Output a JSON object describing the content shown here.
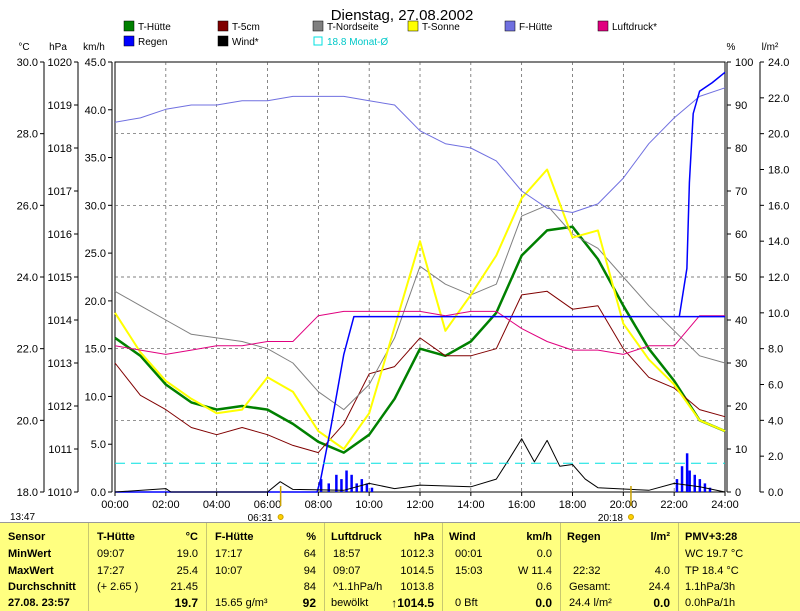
{
  "title": "Dienstag, 27.08.2002",
  "time_label": "13:47",
  "axis_units": {
    "celsius": "°C",
    "hpa": "hPa",
    "kmh": "km/h",
    "percent": "%",
    "lm2": "l/m²"
  },
  "legend": [
    {
      "label": "T-Hütte",
      "color": "#008000"
    },
    {
      "label": "T-5cm",
      "color": "#800000"
    },
    {
      "label": "T-Nordseite",
      "color": "#808080"
    },
    {
      "label": "T-Sonne",
      "color": "#ffff00"
    },
    {
      "label": "F-Hütte",
      "color": "#7070e0"
    },
    {
      "label": "Luftdruck*",
      "color": "#e0007f"
    },
    {
      "label": "Regen",
      "color": "#0000ff"
    },
    {
      "label": "Wind*",
      "color": "#000000"
    },
    {
      "label": "18.8 Monat-Ø",
      "color": "#00e0e0"
    }
  ],
  "sun_markers": {
    "sunrise": "06:31",
    "sunset": "20:18"
  },
  "chart_data": {
    "type": "line",
    "title": "Dienstag, 27.08.2002",
    "x_ticks": [
      "00:00",
      "02:00",
      "04:00",
      "06:00",
      "08:00",
      "10:00",
      "12:00",
      "14:00",
      "16:00",
      "18:00",
      "20:00",
      "22:00",
      "24:00"
    ],
    "axes": {
      "celsius": {
        "ticks": [
          "18.0",
          "20.0",
          "22.0",
          "24.0",
          "26.0",
          "28.0",
          "30.0"
        ],
        "range": [
          18,
          30
        ]
      },
      "hpa": {
        "ticks": [
          "1010",
          "1011",
          "1012",
          "1013",
          "1014",
          "1015",
          "1016",
          "1017",
          "1018",
          "1019",
          "1020"
        ],
        "range": [
          1010,
          1020
        ]
      },
      "kmh": {
        "ticks": [
          "0.0",
          "5.0",
          "10.0",
          "15.0",
          "20.0",
          "25.0",
          "30.0",
          "35.0",
          "40.0",
          "45.0"
        ],
        "range": [
          0,
          50
        ]
      },
      "percent": {
        "ticks": [
          "0",
          "10",
          "20",
          "30",
          "40",
          "50",
          "60",
          "70",
          "80",
          "90",
          "100"
        ],
        "range": [
          0,
          100
        ]
      },
      "lm2": {
        "ticks": [
          "0.0",
          "2.0",
          "4.0",
          "6.0",
          "8.0",
          "10.0",
          "12.0",
          "14.0",
          "16.0",
          "18.0",
          "20.0",
          "22.0",
          "24.0"
        ],
        "range": [
          0,
          25
        ]
      }
    },
    "series": [
      {
        "name": "T-Hütte",
        "axis": "celsius",
        "color": "#008000",
        "width": 2.5,
        "points": [
          [
            0,
            22.3
          ],
          [
            1,
            21.8
          ],
          [
            2,
            21.0
          ],
          [
            3,
            20.5
          ],
          [
            4,
            20.3
          ],
          [
            5,
            20.4
          ],
          [
            6,
            20.3
          ],
          [
            7,
            19.9
          ],
          [
            8,
            19.4
          ],
          [
            9,
            19.1
          ],
          [
            10,
            19.6
          ],
          [
            11,
            20.6
          ],
          [
            12,
            22.0
          ],
          [
            13,
            21.8
          ],
          [
            14,
            22.2
          ],
          [
            15,
            23.0
          ],
          [
            16,
            24.6
          ],
          [
            17,
            25.3
          ],
          [
            18,
            25.4
          ],
          [
            19,
            24.5
          ],
          [
            20,
            23.2
          ],
          [
            21,
            22.0
          ],
          [
            22,
            21.1
          ],
          [
            23,
            20.0
          ],
          [
            24,
            19.7
          ]
        ]
      },
      {
        "name": "T-5cm",
        "axis": "celsius",
        "color": "#800000",
        "width": 1,
        "points": [
          [
            0,
            21.6
          ],
          [
            1,
            20.7
          ],
          [
            2,
            20.3
          ],
          [
            3,
            19.8
          ],
          [
            4,
            19.6
          ],
          [
            5,
            19.8
          ],
          [
            6,
            19.6
          ],
          [
            7,
            19.3
          ],
          [
            8,
            19.1
          ],
          [
            9,
            19.9
          ],
          [
            10,
            21.3
          ],
          [
            11,
            21.5
          ],
          [
            12,
            22.3
          ],
          [
            13,
            21.8
          ],
          [
            14,
            21.8
          ],
          [
            15,
            22.0
          ],
          [
            16,
            23.5
          ],
          [
            17,
            23.6
          ],
          [
            18,
            23.1
          ],
          [
            19,
            23.2
          ],
          [
            20,
            22.0
          ],
          [
            21,
            21.2
          ],
          [
            22,
            20.9
          ],
          [
            23,
            20.3
          ],
          [
            24,
            20.1
          ]
        ]
      },
      {
        "name": "T-Nordseite",
        "axis": "celsius",
        "color": "#808080",
        "width": 1,
        "points": [
          [
            0,
            23.6
          ],
          [
            1,
            23.2
          ],
          [
            2,
            22.8
          ],
          [
            3,
            22.4
          ],
          [
            4,
            22.3
          ],
          [
            5,
            22.2
          ],
          [
            6,
            22.0
          ],
          [
            7,
            21.6
          ],
          [
            8,
            20.8
          ],
          [
            9,
            20.3
          ],
          [
            10,
            21.0
          ],
          [
            11,
            22.3
          ],
          [
            12,
            24.3
          ],
          [
            13,
            23.8
          ],
          [
            14,
            23.5
          ],
          [
            15,
            23.8
          ],
          [
            16,
            25.7
          ],
          [
            17,
            26.0
          ],
          [
            18,
            25.2
          ],
          [
            19,
            24.8
          ],
          [
            20,
            24.0
          ],
          [
            21,
            23.2
          ],
          [
            22,
            22.5
          ],
          [
            23,
            21.8
          ],
          [
            24,
            21.6
          ]
        ]
      },
      {
        "name": "T-Sonne",
        "axis": "celsius",
        "color": "#ffff00",
        "width": 2,
        "points": [
          [
            0,
            23.0
          ],
          [
            1,
            21.9
          ],
          [
            2,
            21.1
          ],
          [
            3,
            20.6
          ],
          [
            4,
            20.2
          ],
          [
            5,
            20.3
          ],
          [
            6,
            21.2
          ],
          [
            7,
            20.8
          ],
          [
            8,
            19.7
          ],
          [
            9,
            19.2
          ],
          [
            10,
            20.2
          ],
          [
            11,
            22.6
          ],
          [
            12,
            25.0
          ],
          [
            13,
            22.5
          ],
          [
            14,
            23.5
          ],
          [
            15,
            24.6
          ],
          [
            16,
            26.2
          ],
          [
            17,
            27.0
          ],
          [
            18,
            25.1
          ],
          [
            19,
            25.3
          ],
          [
            20,
            22.7
          ],
          [
            21,
            21.7
          ],
          [
            22,
            21.0
          ],
          [
            23,
            20.0
          ],
          [
            24,
            19.7
          ]
        ]
      },
      {
        "name": "F-Hütte",
        "axis": "percent",
        "color": "#7070e0",
        "width": 1,
        "points": [
          [
            0,
            86
          ],
          [
            1,
            87
          ],
          [
            2,
            89
          ],
          [
            3,
            90
          ],
          [
            4,
            90
          ],
          [
            5,
            91
          ],
          [
            6,
            91
          ],
          [
            7,
            92
          ],
          [
            8,
            92
          ],
          [
            9,
            92
          ],
          [
            10,
            91
          ],
          [
            11,
            90
          ],
          [
            12,
            84
          ],
          [
            13,
            81
          ],
          [
            14,
            80
          ],
          [
            15,
            77
          ],
          [
            16,
            70
          ],
          [
            17,
            66
          ],
          [
            18,
            65
          ],
          [
            19,
            67
          ],
          [
            20,
            73
          ],
          [
            21,
            81
          ],
          [
            22,
            87
          ],
          [
            23,
            92
          ],
          [
            24,
            94
          ]
        ]
      },
      {
        "name": "Luftdruck*",
        "axis": "hpa",
        "color": "#e0007f",
        "width": 1,
        "points": [
          [
            0,
            1013.4
          ],
          [
            1,
            1013.3
          ],
          [
            2,
            1013.2
          ],
          [
            3,
            1013.3
          ],
          [
            4,
            1013.4
          ],
          [
            5,
            1013.4
          ],
          [
            6,
            1013.5
          ],
          [
            7,
            1013.5
          ],
          [
            8,
            1014.1
          ],
          [
            9,
            1014.2
          ],
          [
            10,
            1014.2
          ],
          [
            11,
            1014.2
          ],
          [
            12,
            1014.2
          ],
          [
            13,
            1014.1
          ],
          [
            14,
            1014.2
          ],
          [
            15,
            1014.2
          ],
          [
            16,
            1013.8
          ],
          [
            17,
            1013.5
          ],
          [
            18,
            1013.3
          ],
          [
            19,
            1013.3
          ],
          [
            20,
            1013.2
          ],
          [
            21,
            1013.4
          ],
          [
            22,
            1013.4
          ],
          [
            23,
            1014.1
          ],
          [
            24,
            1014.1
          ]
        ]
      },
      {
        "name": "Regen",
        "axis": "lm2",
        "color": "#0000ff",
        "width": 1.5,
        "points": [
          [
            0,
            0
          ],
          [
            7.95,
            0
          ],
          [
            8.1,
            0.8
          ],
          [
            8.5,
            3.8
          ],
          [
            9,
            8.0
          ],
          [
            9.4,
            10.2
          ],
          [
            24,
            10.2
          ]
        ],
        "tail": [
          [
            22.2,
            10.2
          ],
          [
            22.5,
            13.0
          ],
          [
            22.6,
            18.0
          ],
          [
            22.75,
            22.0
          ],
          [
            23,
            23.3
          ],
          [
            23.5,
            23.8
          ],
          [
            24,
            24.4
          ]
        ]
      },
      {
        "name": "Wind*",
        "axis": "kmh",
        "color": "#000000",
        "width": 1,
        "points": [
          [
            0,
            0
          ],
          [
            2,
            0.4
          ],
          [
            2.2,
            0
          ],
          [
            6,
            0
          ],
          [
            6.5,
            1.2
          ],
          [
            7,
            0.3
          ],
          [
            9,
            0.2
          ],
          [
            10,
            1.0
          ],
          [
            11,
            0.4
          ],
          [
            12,
            0.8
          ],
          [
            14,
            0.6
          ],
          [
            15,
            1.5
          ],
          [
            15.5,
            3.8
          ],
          [
            16,
            6.2
          ],
          [
            16.5,
            3.5
          ],
          [
            17,
            6.0
          ],
          [
            17.5,
            3.0
          ],
          [
            18,
            3.2
          ],
          [
            18.5,
            1.5
          ],
          [
            19,
            0.5
          ],
          [
            21,
            0.2
          ],
          [
            22,
            1.0
          ],
          [
            23,
            0.6
          ],
          [
            24,
            0
          ]
        ]
      },
      {
        "name": "18.8 Monat-Ø",
        "axis": "celsius",
        "color": "#00e0e0",
        "width": 1,
        "dashed": true,
        "points": [
          [
            0,
            18.8
          ],
          [
            24,
            18.8
          ]
        ]
      }
    ],
    "rain_bars": {
      "axis": "percent",
      "color": "#0000ff",
      "bars": [
        [
          8.1,
          3
        ],
        [
          8.4,
          2
        ],
        [
          8.7,
          4
        ],
        [
          8.9,
          3
        ],
        [
          9.1,
          5
        ],
        [
          9.3,
          4
        ],
        [
          9.5,
          2
        ],
        [
          9.7,
          3
        ],
        [
          9.9,
          2
        ],
        [
          10.1,
          1
        ],
        [
          22.1,
          3
        ],
        [
          22.3,
          6
        ],
        [
          22.5,
          9
        ],
        [
          22.6,
          5
        ],
        [
          22.8,
          4
        ],
        [
          23,
          3
        ],
        [
          23.2,
          2
        ],
        [
          23.4,
          1
        ]
      ]
    },
    "grid": true
  },
  "panel": {
    "sensor": {
      "header": "Sensor",
      "rows": [
        "MinWert",
        "MaxWert",
        "Durchschnitt",
        "27.08. 23:57"
      ]
    },
    "t_huette": {
      "header": "T-Hütte",
      "unit": "°C",
      "rows": [
        [
          "09:07",
          "19.0"
        ],
        [
          "17:27",
          "25.4"
        ],
        [
          "(+ 2.65 )",
          "21.45"
        ],
        [
          "",
          "19.7"
        ]
      ]
    },
    "f_huette": {
      "header": "F-Hütte",
      "unit": "%",
      "rows": [
        [
          "17:17",
          "64"
        ],
        [
          "10:07",
          "94"
        ],
        [
          "",
          "84"
        ],
        [
          "15.65 g/m³",
          "92"
        ]
      ]
    },
    "luftdruck": {
      "header": "Luftdruck",
      "unit": "hPa",
      "rows": [
        [
          "18:57",
          "1012.3"
        ],
        [
          "09:07",
          "1014.5"
        ],
        [
          "^1.1hPa/h",
          "1013.8"
        ],
        [
          "bewölkt",
          "↑1014.5"
        ]
      ]
    },
    "wind": {
      "header": "Wind",
      "unit": "km/h",
      "rows": [
        [
          "00:01",
          "0.0"
        ],
        [
          "15:03",
          "W 11.4"
        ],
        [
          "",
          "0.6"
        ],
        [
          "0 Bft",
          "0.0"
        ]
      ]
    },
    "regen": {
      "header": "Regen",
      "unit": "l/m²",
      "rows": [
        [
          "",
          ""
        ],
        [
          "22:32",
          "4.0"
        ],
        [
          "Gesamt:",
          "24.4"
        ],
        [
          "24.4 l/m²",
          "0.0"
        ]
      ]
    },
    "pmv": {
      "header": "PMV+3:28",
      "rows": [
        "",
        "WC 19.7 °C",
        "TP 18.4 °C",
        "1.1hPa/3h",
        "0.0hPa/1h"
      ]
    }
  }
}
